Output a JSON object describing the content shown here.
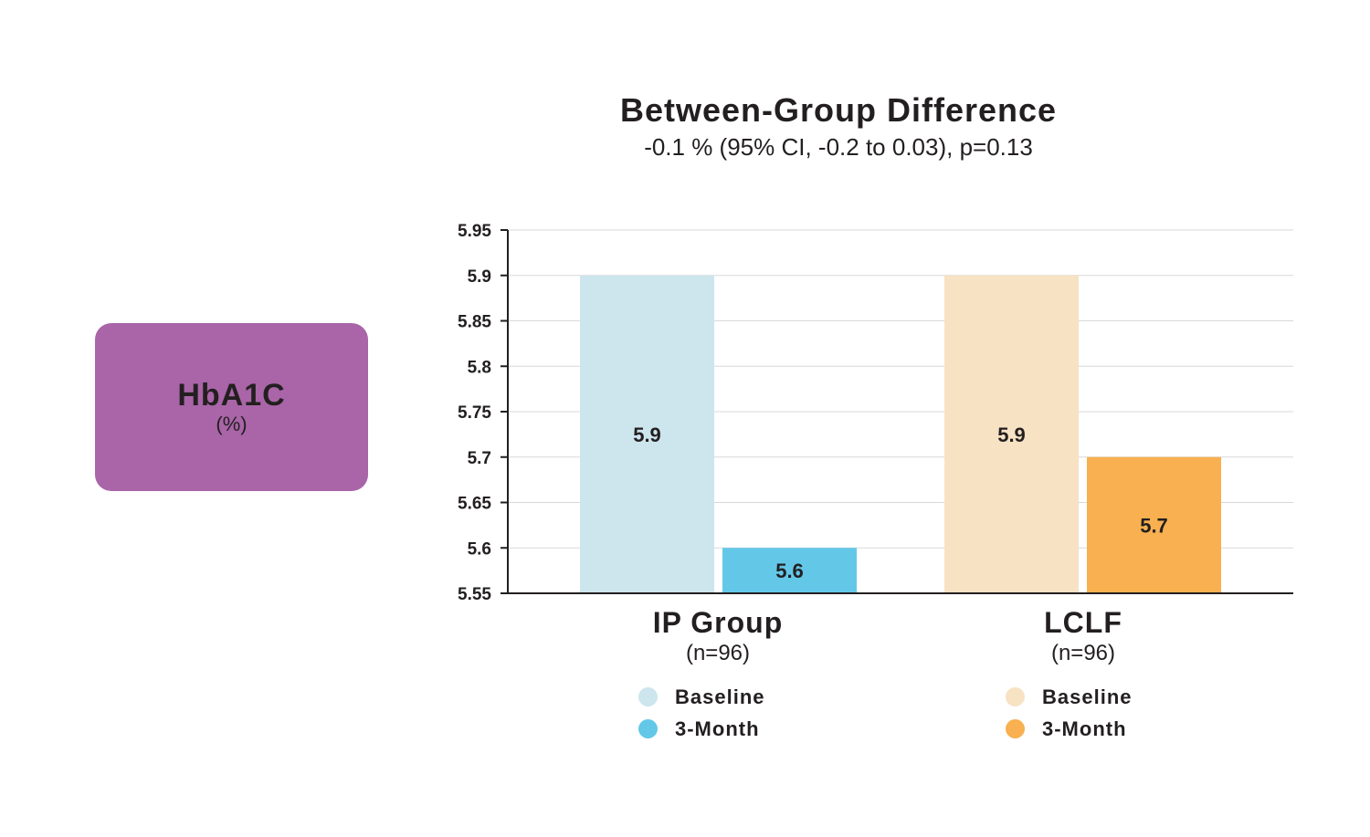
{
  "badge": {
    "title": "HbA1C",
    "unit": "(%)"
  },
  "colors": {
    "badge": "#a965a8",
    "ip_baseline": "#cde5ed",
    "ip_3month": "#63c8e8",
    "lclf_baseline": "#f7e2c3",
    "lclf_3month": "#f8b050",
    "grid": "#d9d9d9",
    "axis": "#231f20"
  },
  "chart_data": {
    "type": "bar",
    "title": "Between-Group Difference",
    "subtitle": "-0.1 % (95% CI, -0.2 to 0.03), p=0.13",
    "ylim": [
      5.55,
      5.95
    ],
    "yticks": [
      "5.55",
      "5.6",
      "5.65",
      "5.7",
      "5.75",
      "5.8",
      "5.85",
      "5.9",
      "5.95"
    ],
    "grid": true,
    "groups": [
      {
        "name": "IP Group",
        "n": "(n=96)",
        "bars": [
          {
            "series": "Baseline",
            "value": 5.9,
            "label": "5.9",
            "color": "#cde5ed"
          },
          {
            "series": "3-Month",
            "value": 5.6,
            "label": "5.6",
            "color": "#63c8e8"
          }
        ]
      },
      {
        "name": "LCLF",
        "n": "(n=96)",
        "bars": [
          {
            "series": "Baseline",
            "value": 5.9,
            "label": "5.9",
            "color": "#f7e2c3"
          },
          {
            "series": "3-Month",
            "value": 5.7,
            "label": "5.7",
            "color": "#f8b050"
          }
        ]
      }
    ],
    "legends": [
      [
        {
          "label": "Baseline",
          "color": "#cde5ed"
        },
        {
          "label": "3-Month",
          "color": "#63c8e8"
        }
      ],
      [
        {
          "label": "Baseline",
          "color": "#f7e2c3"
        },
        {
          "label": "3-Month",
          "color": "#f8b050"
        }
      ]
    ]
  }
}
